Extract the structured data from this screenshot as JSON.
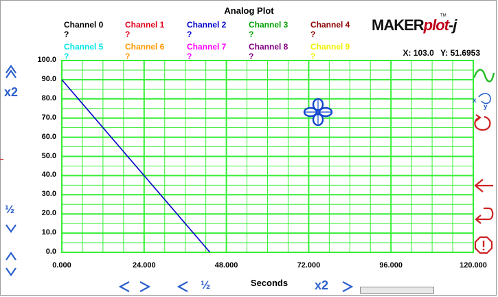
{
  "title": "Analog Plot",
  "channels": [
    {
      "name": "Channel 0",
      "value": "?",
      "color": "#000000"
    },
    {
      "name": "Channel 1",
      "value": "?",
      "color": "#e0001a"
    },
    {
      "name": "Channel 2",
      "value": "?",
      "color": "#0000cc"
    },
    {
      "name": "Channel 3",
      "value": "?",
      "color": "#00a000"
    },
    {
      "name": "Channel 4",
      "value": "?",
      "color": "#8b0000"
    },
    {
      "name": "Channel 5",
      "value": "?",
      "color": "#00e5e5"
    },
    {
      "name": "Channel 6",
      "value": "?",
      "color": "#ff9900"
    },
    {
      "name": "Channel 7",
      "value": "?",
      "color": "#ff00ff"
    },
    {
      "name": "Channel 8",
      "value": "?",
      "color": "#800080"
    },
    {
      "name": "Channel 9",
      "value": "?",
      "color": "#f0f000"
    }
  ],
  "brand": {
    "maker": "MAKER",
    "plot": "plot",
    "j": "-j",
    "tm": "TM"
  },
  "coords": {
    "x": "X: 103.0",
    "y": "Y: 51.6953"
  },
  "controls": {
    "y_zoom_in": "x2",
    "y_zoom_out": "½",
    "x_zoom_out": "½",
    "x_zoom_in": "x2",
    "left_arrow": "<",
    "right_arrow": ">"
  },
  "colors": {
    "grid": "#33ee33",
    "trace": "#0000cc",
    "accent": "#2b5fcc",
    "danger": "#cc2222"
  },
  "icons": [
    "up-chevron-icon",
    "down-chevron-icon",
    "wave-icon",
    "xy-swap-icon",
    "refresh-icon",
    "back-arrow-icon",
    "return-icon",
    "stop-icon",
    "crosshair-cursor-icon"
  ],
  "chart_data": {
    "type": "line",
    "title": "Analog Plot",
    "xlabel": "Seconds",
    "ylabel": "",
    "xlim": [
      0,
      120
    ],
    "ylim": [
      0,
      100
    ],
    "x_ticks": [
      "0.000",
      "24.000",
      "48.000",
      "72.000",
      "96.000",
      "120.000"
    ],
    "y_ticks": [
      "0.0",
      "10.0",
      "20.0",
      "30.0",
      "40.0",
      "50.0",
      "60.0",
      "70.0",
      "80.0",
      "90.0",
      "100.0"
    ],
    "grid": true,
    "series": [
      {
        "x": [
          0,
          43.2
        ],
        "y": [
          90,
          0
        ]
      }
    ]
  }
}
